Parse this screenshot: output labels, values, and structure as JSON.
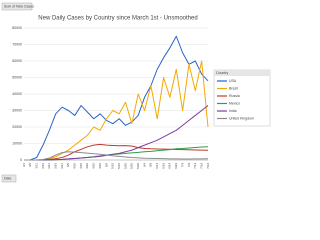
{
  "chart_data": {
    "type": "line",
    "title": "New Daily Cases by Country since March 1st - Unsmoothed",
    "field_buttons": [
      "Sum of New Cases",
      "Date"
    ],
    "legend_title": "Country",
    "legend": "right",
    "categories": [
      "3/1",
      "3/6",
      "3/11",
      "3/16",
      "3/21",
      "3/26",
      "3/31",
      "4/5",
      "4/10",
      "4/15",
      "4/20",
      "4/25",
      "4/30",
      "5/5",
      "5/10",
      "5/15",
      "5/20",
      "5/25",
      "5/30",
      "6/4",
      "6/9",
      "6/14",
      "6/19",
      "6/24",
      "6/29",
      "7/4",
      "7/9",
      "7/14",
      "7/19",
      "7/24"
    ],
    "ylim": [
      0,
      80000
    ],
    "yticks": [
      0,
      10000,
      20000,
      30000,
      40000,
      50000,
      60000,
      70000,
      80000
    ],
    "grid": true,
    "series": [
      {
        "name": "USA",
        "color": "#2a62c9",
        "values": [
          0,
          100,
          1500,
          9000,
          18000,
          28000,
          32000,
          30000,
          27000,
          33000,
          29000,
          25000,
          28000,
          24000,
          22000,
          25000,
          21000,
          23000,
          27000,
          38000,
          45000,
          55000,
          62000,
          68000,
          75000,
          65000,
          58000,
          60000,
          52000,
          48000
        ]
      },
      {
        "name": "Brazil",
        "color": "#f2a900",
        "values": [
          0,
          0,
          0,
          100,
          800,
          2000,
          4000,
          6000,
          9000,
          12000,
          15000,
          20000,
          18000,
          25000,
          30000,
          28000,
          35000,
          22000,
          40000,
          30000,
          45000,
          25000,
          50000,
          38000,
          55000,
          30000,
          58000,
          42000,
          60000,
          20000
        ]
      },
      {
        "name": "Russia",
        "color": "#c0392b",
        "values": [
          0,
          0,
          0,
          50,
          300,
          800,
          1500,
          3000,
          5000,
          6500,
          8000,
          9000,
          9500,
          9000,
          8800,
          8600,
          8700,
          8500,
          7500,
          7000,
          6800,
          6700,
          6600,
          6500,
          6400,
          6300,
          6200,
          6100,
          6000,
          5900
        ]
      },
      {
        "name": "Mexico",
        "color": "#2e9e4a",
        "values": [
          0,
          0,
          0,
          0,
          50,
          150,
          300,
          600,
          900,
          1200,
          1600,
          2000,
          2500,
          3000,
          3300,
          3600,
          4000,
          4300,
          4600,
          5000,
          5200,
          5600,
          6000,
          6300,
          6800,
          7000,
          7300,
          7600,
          7900,
          8000
        ]
      },
      {
        "name": "India",
        "color": "#7b3fa0",
        "values": [
          0,
          0,
          0,
          50,
          100,
          200,
          400,
          700,
          900,
          1200,
          1500,
          1800,
          2200,
          2800,
          3500,
          4000,
          5000,
          6000,
          7500,
          9000,
          10500,
          12000,
          14000,
          16000,
          18000,
          21000,
          24000,
          27000,
          30000,
          33000
        ]
      },
      {
        "name": "United Kingdom",
        "color": "#8c8c8c",
        "values": [
          0,
          0,
          50,
          300,
          1200,
          3000,
          4500,
          5000,
          4800,
          4500,
          4200,
          3800,
          3500,
          3000,
          2500,
          2200,
          1800,
          1500,
          1300,
          1100,
          1000,
          900,
          800,
          700,
          650,
          600,
          600,
          650,
          700,
          750
        ]
      }
    ]
  }
}
